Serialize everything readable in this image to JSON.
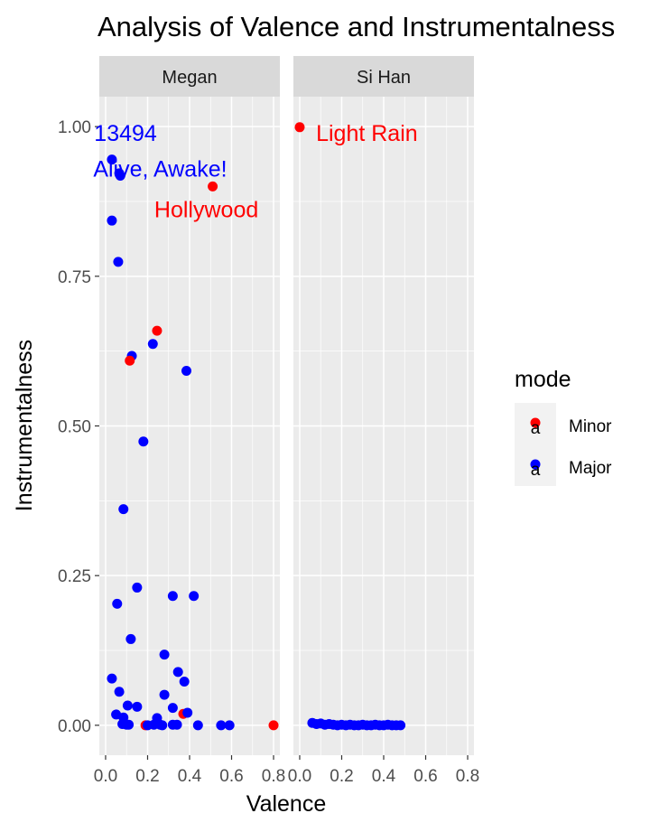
{
  "chart_data": {
    "type": "scatter",
    "title": "Analysis of Valence and Instrumentalness",
    "xlabel": "Valence",
    "ylabel": "Instrumentalness",
    "xlim": [
      -0.03,
      0.83
    ],
    "ylim": [
      -0.05,
      1.05
    ],
    "x_ticks": [
      0.0,
      0.2,
      0.4,
      0.6,
      0.8
    ],
    "x_tick_labels": [
      "0.0",
      "0.2",
      "0.4",
      "0.6",
      "0.8"
    ],
    "y_ticks": [
      0.0,
      0.25,
      0.5,
      0.75,
      1.0
    ],
    "y_tick_labels": [
      "0.00",
      "0.25",
      "0.50",
      "0.75",
      "1.00"
    ],
    "grid": true,
    "legend": {
      "title": "mode",
      "placement": "right",
      "entries": [
        {
          "label": "Minor",
          "color": "#FF0000",
          "key_glyph": "a"
        },
        {
          "label": "Major",
          "color": "#0000FF",
          "key_glyph": "a"
        }
      ]
    },
    "colors": {
      "Minor": "#FF0000",
      "Major": "#0000FF",
      "panel_bg": "#EBEBEB",
      "strip_bg": "#D9D9D9"
    },
    "facets": [
      {
        "name": "Megan",
        "points": [
          {
            "x": 0.03,
            "y": 0.945,
            "mode": "Major"
          },
          {
            "x": 0.065,
            "y": 0.922,
            "mode": "Major"
          },
          {
            "x": 0.07,
            "y": 0.918,
            "mode": "Major"
          },
          {
            "x": 0.51,
            "y": 0.9,
            "mode": "Minor"
          },
          {
            "x": 0.03,
            "y": 0.843,
            "mode": "Major"
          },
          {
            "x": 0.06,
            "y": 0.774,
            "mode": "Major"
          },
          {
            "x": 0.245,
            "y": 0.659,
            "mode": "Minor"
          },
          {
            "x": 0.225,
            "y": 0.637,
            "mode": "Major"
          },
          {
            "x": 0.125,
            "y": 0.617,
            "mode": "Major"
          },
          {
            "x": 0.115,
            "y": 0.609,
            "mode": "Minor"
          },
          {
            "x": 0.385,
            "y": 0.592,
            "mode": "Major"
          },
          {
            "x": 0.18,
            "y": 0.474,
            "mode": "Major"
          },
          {
            "x": 0.085,
            "y": 0.361,
            "mode": "Major"
          },
          {
            "x": 0.15,
            "y": 0.23,
            "mode": "Major"
          },
          {
            "x": 0.32,
            "y": 0.216,
            "mode": "Major"
          },
          {
            "x": 0.42,
            "y": 0.216,
            "mode": "Major"
          },
          {
            "x": 0.055,
            "y": 0.203,
            "mode": "Major"
          },
          {
            "x": 0.12,
            "y": 0.144,
            "mode": "Major"
          },
          {
            "x": 0.28,
            "y": 0.118,
            "mode": "Major"
          },
          {
            "x": 0.345,
            "y": 0.089,
            "mode": "Major"
          },
          {
            "x": 0.03,
            "y": 0.078,
            "mode": "Major"
          },
          {
            "x": 0.375,
            "y": 0.073,
            "mode": "Major"
          },
          {
            "x": 0.065,
            "y": 0.056,
            "mode": "Major"
          },
          {
            "x": 0.28,
            "y": 0.051,
            "mode": "Major"
          },
          {
            "x": 0.105,
            "y": 0.033,
            "mode": "Major"
          },
          {
            "x": 0.15,
            "y": 0.031,
            "mode": "Major"
          },
          {
            "x": 0.32,
            "y": 0.029,
            "mode": "Major"
          },
          {
            "x": 0.37,
            "y": 0.019,
            "mode": "Minor"
          },
          {
            "x": 0.39,
            "y": 0.021,
            "mode": "Major"
          },
          {
            "x": 0.05,
            "y": 0.018,
            "mode": "Major"
          },
          {
            "x": 0.085,
            "y": 0.013,
            "mode": "Major"
          },
          {
            "x": 0.245,
            "y": 0.012,
            "mode": "Major"
          },
          {
            "x": 0.08,
            "y": 0.002,
            "mode": "Major"
          },
          {
            "x": 0.1,
            "y": 0.001,
            "mode": "Major"
          },
          {
            "x": 0.11,
            "y": 0.001,
            "mode": "Major"
          },
          {
            "x": 0.19,
            "y": 0.0,
            "mode": "Minor"
          },
          {
            "x": 0.2,
            "y": 0.0,
            "mode": "Major"
          },
          {
            "x": 0.23,
            "y": 0.001,
            "mode": "Major"
          },
          {
            "x": 0.26,
            "y": 0.001,
            "mode": "Major"
          },
          {
            "x": 0.27,
            "y": 0.0,
            "mode": "Major"
          },
          {
            "x": 0.32,
            "y": 0.001,
            "mode": "Major"
          },
          {
            "x": 0.34,
            "y": 0.001,
            "mode": "Major"
          },
          {
            "x": 0.44,
            "y": 0.0,
            "mode": "Major"
          },
          {
            "x": 0.55,
            "y": 0.0,
            "mode": "Major"
          },
          {
            "x": 0.59,
            "y": 0.0,
            "mode": "Major"
          },
          {
            "x": 0.8,
            "y": 0.0,
            "mode": "Minor"
          }
        ],
        "labels": [
          {
            "text": "13494",
            "x": 0.095,
            "y": 0.99,
            "mode": "Major"
          },
          {
            "text": "Alive, Awake!",
            "x": 0.26,
            "y": 0.93,
            "mode": "Major"
          },
          {
            "text": "Hollywood",
            "x": 0.48,
            "y": 0.862,
            "mode": "Minor"
          }
        ]
      },
      {
        "name": "Si Han",
        "points": [
          {
            "x": 0.0,
            "y": 0.999,
            "mode": "Minor"
          },
          {
            "x": 0.06,
            "y": 0.004,
            "mode": "Major"
          },
          {
            "x": 0.08,
            "y": 0.002,
            "mode": "Major"
          },
          {
            "x": 0.1,
            "y": 0.003,
            "mode": "Major"
          },
          {
            "x": 0.12,
            "y": 0.001,
            "mode": "Major"
          },
          {
            "x": 0.14,
            "y": 0.002,
            "mode": "Major"
          },
          {
            "x": 0.16,
            "y": 0.001,
            "mode": "Major"
          },
          {
            "x": 0.18,
            "y": 0.0,
            "mode": "Major"
          },
          {
            "x": 0.2,
            "y": 0.001,
            "mode": "Major"
          },
          {
            "x": 0.22,
            "y": 0.0,
            "mode": "Major"
          },
          {
            "x": 0.24,
            "y": 0.001,
            "mode": "Major"
          },
          {
            "x": 0.26,
            "y": 0.0,
            "mode": "Major"
          },
          {
            "x": 0.28,
            "y": 0.0,
            "mode": "Major"
          },
          {
            "x": 0.3,
            "y": 0.001,
            "mode": "Major"
          },
          {
            "x": 0.32,
            "y": 0.0,
            "mode": "Major"
          },
          {
            "x": 0.34,
            "y": 0.0,
            "mode": "Major"
          },
          {
            "x": 0.36,
            "y": 0.001,
            "mode": "Major"
          },
          {
            "x": 0.38,
            "y": 0.0,
            "mode": "Major"
          },
          {
            "x": 0.4,
            "y": 0.0,
            "mode": "Major"
          },
          {
            "x": 0.42,
            "y": 0.001,
            "mode": "Major"
          },
          {
            "x": 0.44,
            "y": 0.0,
            "mode": "Major"
          },
          {
            "x": 0.46,
            "y": 0.0,
            "mode": "Major"
          },
          {
            "x": 0.48,
            "y": 0.0,
            "mode": "Major"
          }
        ],
        "labels": [
          {
            "text": "Light Rain",
            "x": 0.32,
            "y": 0.99,
            "mode": "Minor"
          }
        ]
      }
    ]
  }
}
